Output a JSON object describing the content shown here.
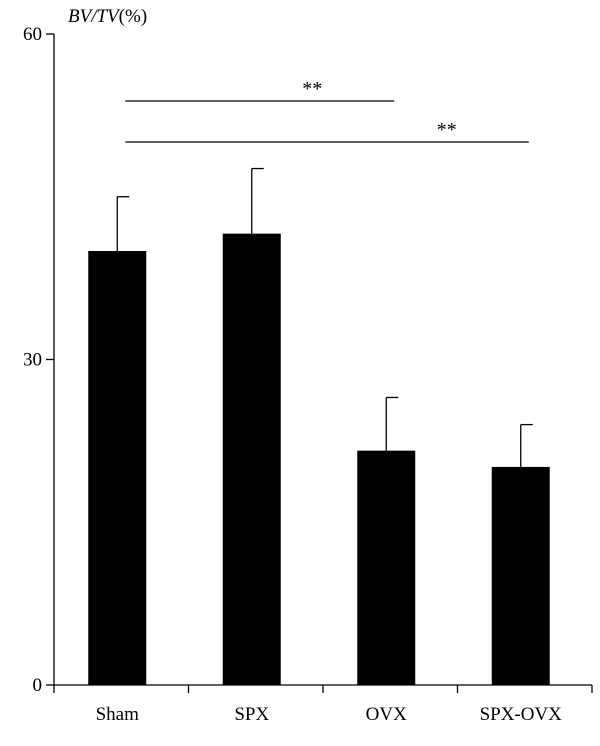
{
  "chart_data": {
    "type": "bar",
    "categories": [
      "Sham",
      "SPX",
      "OVX",
      "SPX-OVX"
    ],
    "values": [
      40.0,
      41.6,
      21.6,
      20.1
    ],
    "errors": [
      5.0,
      6.0,
      4.9,
      3.9
    ],
    "ylabel_italic": "BV/TV",
    "ylabel_unit": "(%)",
    "ylim": [
      0,
      60
    ],
    "yticks": [
      "0",
      "30",
      "60"
    ],
    "ytick_values": [
      0,
      30,
      60
    ],
    "bar_color": "#000000",
    "grid": false,
    "legend": "none",
    "significance": [
      {
        "from": 0,
        "to": 2,
        "label": "**"
      },
      {
        "from": 0,
        "to": 3,
        "label": "**"
      }
    ]
  }
}
